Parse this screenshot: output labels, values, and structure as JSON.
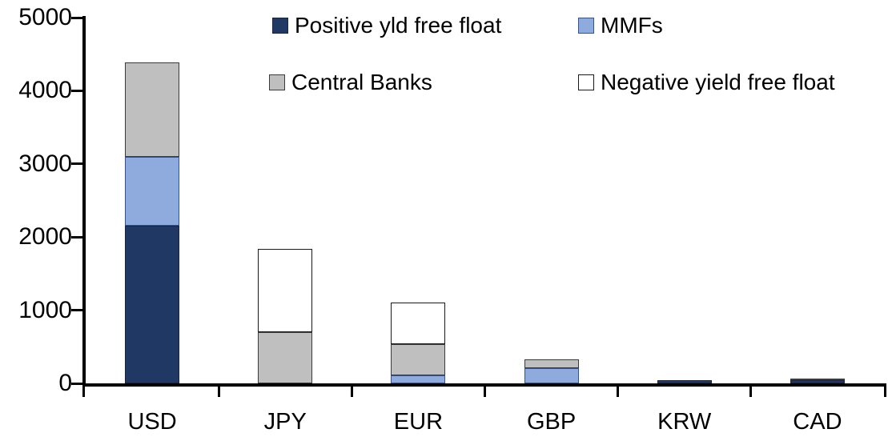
{
  "chart_data": {
    "type": "bar",
    "stacked": true,
    "title": "",
    "xlabel": "",
    "ylabel": "",
    "categories": [
      "USD",
      "JPY",
      "EUR",
      "GBP",
      "KRW",
      "CAD"
    ],
    "series": [
      {
        "name": "Positive yld free float",
        "color": "#1F3864",
        "border": "#16243F",
        "values": [
          2150,
          0,
          0,
          0,
          45,
          40
        ]
      },
      {
        "name": "MMFs",
        "color": "#8FAADC",
        "border": "#2F5597",
        "values": [
          950,
          0,
          110,
          210,
          0,
          0
        ]
      },
      {
        "name": "Central Banks",
        "color": "#BFBFBF",
        "border": "#3B3B3B",
        "values": [
          1290,
          700,
          430,
          120,
          0,
          30
        ]
      },
      {
        "name": "Negative yield free float",
        "color": "#FFFFFF",
        "border": "#1A1A1A",
        "values": [
          0,
          1140,
          570,
          0,
          0,
          0
        ]
      }
    ],
    "totals": [
      4390,
      1840,
      1110,
      330,
      45,
      70
    ],
    "ylim": [
      0,
      5000
    ],
    "yticks": [
      0,
      1000,
      2000,
      3000,
      4000,
      5000
    ],
    "grid": false,
    "legend_position": "top",
    "axis_color": "#000000",
    "background_color": "#FFFFFF"
  }
}
